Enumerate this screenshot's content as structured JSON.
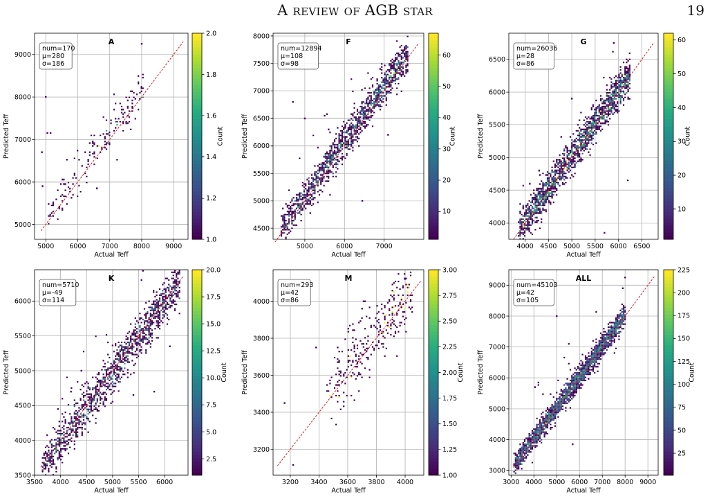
{
  "page": {
    "running_title": "A review of AGB star",
    "page_number": "19"
  },
  "chart_data": [
    {
      "type": "heatmap",
      "title": "A",
      "xlabel": "Actual Teff",
      "ylabel": "Predicted Teff",
      "colorbar_label": "Count",
      "stats": [
        "num=170",
        "μ=280",
        "σ=186"
      ],
      "xlim": [
        4650,
        9450
      ],
      "ylim": [
        4650,
        9500
      ],
      "xticks": [
        5000,
        6000,
        7000,
        8000,
        9000
      ],
      "yticks": [
        5000,
        6000,
        7000,
        8000,
        9000
      ],
      "cbar_range": [
        1.0,
        2.0
      ],
      "cbar_ticks": [
        1.0,
        1.2,
        1.4,
        1.6,
        1.8,
        2.0
      ],
      "cbar_tick_labels": [
        "1.0",
        "1.2",
        "1.4",
        "1.6",
        "1.8",
        "2.0"
      ],
      "diagonal": [
        4850,
        9300
      ],
      "grid": true,
      "density": {
        "spread": 220,
        "bias": 150,
        "outlier_fraction": 0.18,
        "n": 170,
        "range": [
          5000,
          8050
        ]
      },
      "extra_points": [
        [
          4880,
          6700
        ],
        [
          4900,
          5900
        ],
        [
          5000,
          8000
        ],
        [
          5050,
          7150
        ],
        [
          5150,
          7150
        ],
        [
          6600,
          5850
        ],
        [
          8000,
          9250
        ]
      ]
    },
    {
      "type": "heatmap",
      "title": "F",
      "xlabel": "Actual Teff",
      "ylabel": "Predicted Teff",
      "colorbar_label": "Count",
      "stats": [
        "num=12894",
        "μ=108",
        "σ=98"
      ],
      "xlim": [
        4200,
        8000
      ],
      "ylim": [
        4300,
        8050
      ],
      "xticks": [
        5000,
        6000,
        7000
      ],
      "yticks": [
        4500,
        5000,
        5500,
        6000,
        6500,
        7000,
        7500,
        8000
      ],
      "cbar_range": [
        1,
        67
      ],
      "cbar_ticks": [
        10,
        20,
        30,
        40,
        50,
        60
      ],
      "cbar_tick_labels": [
        "10",
        "20",
        "30",
        "40",
        "50",
        "60"
      ],
      "diagonal": [
        4250,
        7850
      ],
      "grid": true,
      "density": {
        "spread": 150,
        "bias": 80,
        "outlier_fraction": 0.02,
        "n": 1400,
        "range": [
          4400,
          7600
        ]
      },
      "extra_points": [
        [
          4700,
          6800
        ],
        [
          5000,
          6500
        ],
        [
          5500,
          6550
        ],
        [
          6450,
          5000
        ],
        [
          5600,
          6300
        ],
        [
          7100,
          6200
        ],
        [
          6900,
          7400
        ]
      ]
    },
    {
      "type": "heatmap",
      "title": "G",
      "xlabel": "Actual Teff",
      "ylabel": "Predicted Teff",
      "colorbar_label": "Count",
      "stats": [
        "num=26036",
        "μ=28",
        "σ=86"
      ],
      "xlim": [
        3650,
        6850
      ],
      "ylim": [
        3750,
        6900
      ],
      "xticks": [
        4000,
        4500,
        5000,
        5500,
        6000,
        6500
      ],
      "yticks": [
        4000,
        4500,
        5000,
        5500,
        6000,
        6500
      ],
      "cbar_range": [
        1,
        62
      ],
      "cbar_ticks": [
        10,
        20,
        30,
        40,
        50,
        60
      ],
      "cbar_tick_labels": [
        "10",
        "20",
        "30",
        "40",
        "50",
        "60"
      ],
      "diagonal": [
        3750,
        6750
      ],
      "grid": true,
      "density": {
        "spread": 130,
        "bias": 30,
        "outlier_fraction": 0.01,
        "n": 1600,
        "range": [
          3850,
          6250
        ]
      },
      "extra_points": [
        [
          5900,
          6750
        ],
        [
          6200,
          4650
        ],
        [
          5700,
          3850
        ],
        [
          5000,
          5900
        ],
        [
          4300,
          4800
        ],
        [
          4100,
          4600
        ]
      ]
    },
    {
      "type": "heatmap",
      "title": "K",
      "xlabel": "Actual Teff",
      "ylabel": "Predicted Teff",
      "colorbar_label": "Count",
      "stats": [
        "num=5710",
        "μ=-49",
        "σ=114"
      ],
      "xlim": [
        3500,
        6450
      ],
      "ylim": [
        3500,
        6450
      ],
      "xticks": [
        3500,
        4000,
        4500,
        5000,
        5500,
        6000
      ],
      "yticks": [
        3500,
        4000,
        4500,
        5000,
        5500,
        6000
      ],
      "cbar_range": [
        1,
        20
      ],
      "cbar_ticks": [
        2.5,
        5.0,
        7.5,
        10.0,
        12.5,
        15.0,
        17.5,
        20.0
      ],
      "cbar_tick_labels": [
        "2.5",
        "5.0",
        "7.5",
        "10.0",
        "12.5",
        "15.0",
        "17.5",
        "20.0"
      ],
      "diagonal": [
        3620,
        6350
      ],
      "grid": true,
      "density": {
        "spread": 150,
        "bias": -30,
        "outlier_fraction": 0.02,
        "n": 1300,
        "range": [
          3650,
          6300
        ]
      },
      "extra_points": [
        [
          3950,
          4450
        ],
        [
          4200,
          4700
        ],
        [
          4400,
          5000
        ],
        [
          5800,
          4700
        ],
        [
          6100,
          5350
        ],
        [
          5400,
          4650
        ]
      ]
    },
    {
      "type": "heatmap",
      "title": "M",
      "xlabel": "Actual Teff",
      "ylabel": "Predicted Teff",
      "colorbar_label": "Count",
      "stats": [
        "num=293",
        "μ=42",
        "σ=86"
      ],
      "xlim": [
        3080,
        4130
      ],
      "ylim": [
        3060,
        4170
      ],
      "xticks": [
        3200,
        3400,
        3600,
        3800,
        4000
      ],
      "yticks": [
        3200,
        3400,
        3600,
        3800,
        4000
      ],
      "cbar_range": [
        1.0,
        3.0
      ],
      "cbar_ticks": [
        1.0,
        1.25,
        1.5,
        1.75,
        2.0,
        2.25,
        2.5,
        2.75,
        3.0
      ],
      "cbar_tick_labels": [
        "1.00",
        "1.25",
        "1.50",
        "1.75",
        "2.00",
        "2.25",
        "2.50",
        "2.75",
        "3.00"
      ],
      "diagonal": [
        3110,
        4110
      ],
      "grid": true,
      "density": {
        "spread": 90,
        "bias": 40,
        "outlier_fraction": 0.05,
        "n": 290,
        "range": [
          3450,
          4050
        ]
      },
      "extra_points": [
        [
          3160,
          3450
        ],
        [
          3220,
          3115
        ],
        [
          3380,
          3750
        ],
        [
          3530,
          3750
        ],
        [
          4000,
          4120
        ],
        [
          3700,
          3960
        ]
      ]
    },
    {
      "type": "heatmap",
      "title": "ALL",
      "xlabel": "Actual Teff",
      "ylabel": "Predicted Teff",
      "colorbar_label": "Count",
      "stats": [
        "num=45103",
        "μ=42",
        "σ=105"
      ],
      "xlim": [
        2900,
        9450
      ],
      "ylim": [
        2850,
        9500
      ],
      "xticks": [
        3000,
        4000,
        5000,
        6000,
        7000,
        8000,
        9000
      ],
      "yticks": [
        3000,
        4000,
        5000,
        6000,
        7000,
        8000,
        9000
      ],
      "cbar_range": [
        1,
        225
      ],
      "cbar_ticks": [
        25,
        50,
        75,
        100,
        125,
        150,
        175,
        200,
        225
      ],
      "cbar_tick_labels": [
        "25",
        "50",
        "75",
        "100",
        "125",
        "150",
        "175",
        "200",
        "225"
      ],
      "diagonal": [
        3100,
        9300
      ],
      "grid": true,
      "density": {
        "spread": 170,
        "bias": 40,
        "outlier_fraction": 0.01,
        "n": 2200,
        "range": [
          3150,
          8000
        ]
      },
      "extra_points": [
        [
          5000,
          8000
        ],
        [
          4050,
          5700
        ],
        [
          4200,
          5850
        ],
        [
          5700,
          3850
        ],
        [
          8000,
          9250
        ],
        [
          7900,
          8900
        ]
      ]
    }
  ]
}
